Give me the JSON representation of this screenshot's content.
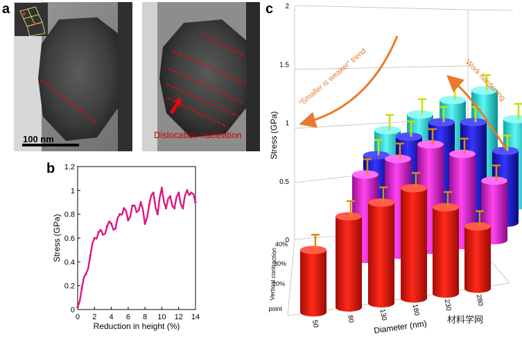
{
  "panels": {
    "a": "a",
    "b": "b",
    "c": "c"
  },
  "panel_a": {
    "scale_bar_label": "100 nm",
    "annotation": "Dislocation nucleation"
  },
  "colors": {
    "red": "#e8160c",
    "magenta": "#ee22dd",
    "blue": "#1f1fe6",
    "cyan": "#22e6e6",
    "pink_curve": "#e0127f",
    "orange_arrow": "#e97a2c",
    "dashed_line": "#ff0000",
    "error_bar_yellow": "#c8e000",
    "error_bar_orange": "#e08a10"
  },
  "chart_data": [
    {
      "type": "line",
      "title": "",
      "xlabel": "Reduction in height (%)",
      "ylabel": "Stress (GPa)",
      "xlim": [
        0,
        14
      ],
      "ylim": [
        0,
        1.2
      ],
      "xticks": [
        "0",
        "2",
        "4",
        "6",
        "8",
        "10",
        "12",
        "14"
      ],
      "yticks": [
        "0",
        "0.2",
        "0.4",
        "0.6",
        "0.8",
        "1",
        "1.2"
      ],
      "x": [
        0,
        0.5,
        1,
        1.5,
        2,
        2.5,
        3,
        3.5,
        4,
        4.5,
        5,
        5.5,
        6,
        6.5,
        7,
        7.5,
        8,
        8.5,
        9,
        9.5,
        10,
        10.5,
        11,
        11.5,
        12,
        12.5,
        13,
        13.5,
        14
      ],
      "y": [
        0.02,
        0.18,
        0.3,
        0.45,
        0.6,
        0.65,
        0.63,
        0.7,
        0.72,
        0.68,
        0.8,
        0.85,
        0.75,
        0.87,
        0.82,
        0.9,
        0.72,
        0.88,
        0.98,
        0.8,
        1.02,
        0.85,
        0.95,
        0.85,
        0.98,
        0.85,
        1.0,
        0.98,
        0.9
      ]
    },
    {
      "type": "bar",
      "title": "",
      "xlabel": "Diameter (nm)",
      "ylabel": "Stress (GPa)",
      "zlabel": "Vertical contraction",
      "categories": [
        "50",
        "80",
        "130",
        "180",
        "230",
        "280"
      ],
      "zcategories": [
        "Yield point",
        "20%",
        "30%",
        "40%"
      ],
      "zlim": [
        0,
        2
      ],
      "zticks": [
        "0",
        "0.5",
        "1",
        "1.5",
        "2"
      ],
      "series": [
        {
          "name": "Yield point",
          "values": [
            0.65,
            0.95,
            1.05,
            1.15,
            0.9,
            0.65
          ]
        },
        {
          "name": "20%",
          "values": [
            null,
            0.88,
            1.0,
            1.1,
            0.95,
            0.62
          ]
        },
        {
          "name": "30%",
          "values": [
            null,
            0.9,
            1.05,
            1.15,
            1.1,
            0.75
          ]
        },
        {
          "name": "40%",
          "values": [
            null,
            0.98,
            1.1,
            1.2,
            1.25,
            0.9
          ]
        }
      ],
      "annotations": [
        "“Smaller is weaker” trend",
        "Work hardening"
      ]
    }
  ],
  "watermark": "材料学网"
}
